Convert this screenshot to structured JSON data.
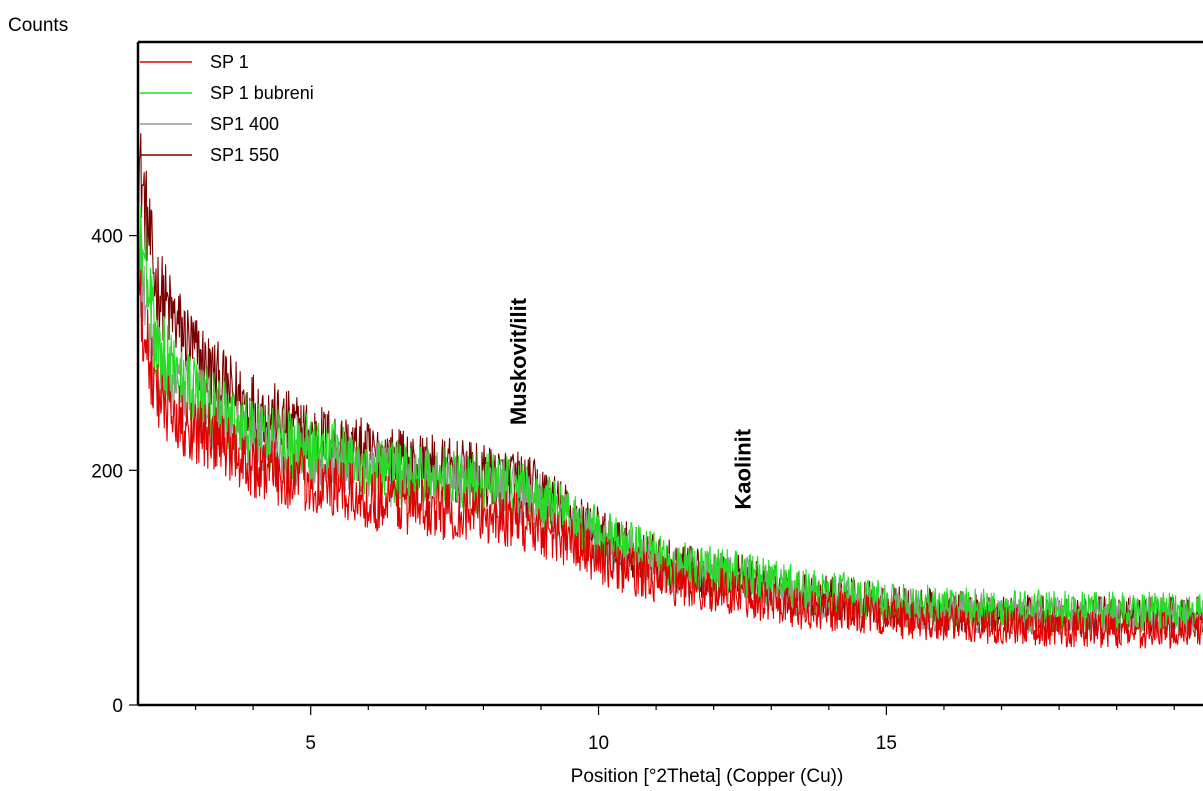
{
  "chart_data": {
    "type": "line",
    "title": "",
    "xlabel": "Position [°2Theta] (Copper (Cu))",
    "ylabel": "Counts",
    "xlim": [
      2.0,
      20.5
    ],
    "ylim": [
      0,
      565
    ],
    "xticks": [
      5,
      10,
      15
    ],
    "yticks": [
      0,
      200,
      400
    ],
    "grid": false,
    "legend_position": "top-left",
    "series": [
      {
        "name": "SP 1",
        "color": "#e00000",
        "x": [
          2.0,
          2.3,
          2.6,
          3,
          3.5,
          4,
          4.5,
          5,
          5.5,
          6,
          6.5,
          7,
          7.5,
          8,
          8.5,
          9,
          9.5,
          10,
          10.5,
          11,
          11.5,
          12,
          12.5,
          13,
          13.5,
          14,
          14.5,
          15,
          15.5,
          16,
          16.5,
          17,
          17.5,
          18,
          18.5,
          19,
          19.5,
          20,
          20.5
        ],
        "values": [
          350,
          265,
          245,
          235,
          220,
          205,
          195,
          190,
          182,
          176,
          172,
          168,
          165,
          162,
          158,
          150,
          138,
          125,
          115,
          108,
          102,
          98,
          95,
          88,
          82,
          80,
          78,
          75,
          72,
          70,
          68,
          68,
          66,
          65,
          65,
          64,
          64,
          64,
          64
        ]
      },
      {
        "name": "SP 1 bubreni",
        "color": "#22dd22",
        "x": [
          2.0,
          2.3,
          2.6,
          3,
          3.5,
          4,
          4.5,
          5,
          5.5,
          6,
          6.5,
          7,
          7.5,
          8,
          8.5,
          9,
          9.5,
          10,
          10.5,
          11,
          11.5,
          12,
          12.5,
          13,
          13.5,
          14,
          14.5,
          15,
          15.5,
          16,
          16.5,
          17,
          17.5,
          18,
          18.5,
          19,
          19.5,
          20,
          20.5
        ],
        "values": [
          420,
          310,
          285,
          265,
          245,
          235,
          225,
          218,
          212,
          205,
          198,
          195,
          192,
          190,
          186,
          175,
          160,
          145,
          135,
          125,
          118,
          114,
          112,
          105,
          98,
          95,
          92,
          88,
          85,
          83,
          82,
          81,
          80,
          80,
          79,
          79,
          79,
          79,
          79
        ]
      },
      {
        "name": "SP1 400",
        "color": "#999999",
        "x": [
          2.0,
          2.3,
          2.6,
          3,
          3.5,
          4,
          4.5,
          5,
          5.5,
          6,
          6.5,
          7,
          7.5,
          8,
          8.5,
          9,
          9.5,
          10,
          10.5,
          11,
          11.5,
          12,
          12.5,
          13,
          13.5,
          14,
          14.5,
          15,
          15.5,
          16,
          16.5,
          17,
          17.5,
          18,
          18.5,
          19,
          19.5,
          20,
          20.5
        ],
        "values": [
          380,
          290,
          270,
          255,
          238,
          228,
          218,
          212,
          206,
          200,
          195,
          192,
          189,
          186,
          183,
          172,
          155,
          140,
          130,
          120,
          113,
          110,
          107,
          100,
          94,
          92,
          89,
          85,
          82,
          80,
          79,
          78,
          77,
          77,
          76,
          76,
          76,
          76,
          76
        ]
      },
      {
        "name": "SP1 550",
        "color": "#7a0000",
        "x": [
          2.0,
          2.3,
          2.6,
          3,
          3.5,
          4,
          4.5,
          5,
          5.5,
          6,
          6.5,
          7,
          7.5,
          8,
          8.5,
          9,
          9.5,
          10,
          10.5,
          11,
          11.5,
          12,
          12.5,
          13,
          13.5,
          14,
          14.5,
          15,
          15.5,
          16,
          16.5,
          17,
          17.5,
          18,
          18.5,
          19,
          19.5,
          20,
          20.5
        ],
        "values": [
          470,
          360,
          330,
          300,
          270,
          255,
          240,
          230,
          222,
          214,
          208,
          203,
          199,
          195,
          192,
          180,
          162,
          145,
          133,
          123,
          115,
          110,
          108,
          100,
          95,
          92,
          89,
          85,
          82,
          80,
          79,
          78,
          77,
          76,
          76,
          75,
          75,
          75,
          75
        ]
      }
    ],
    "annotations": [
      {
        "text": "Muskovit/ilit",
        "x": 8.6,
        "y": 230
      },
      {
        "text": "Kaolinit",
        "x": 12.5,
        "y": 158
      }
    ]
  }
}
